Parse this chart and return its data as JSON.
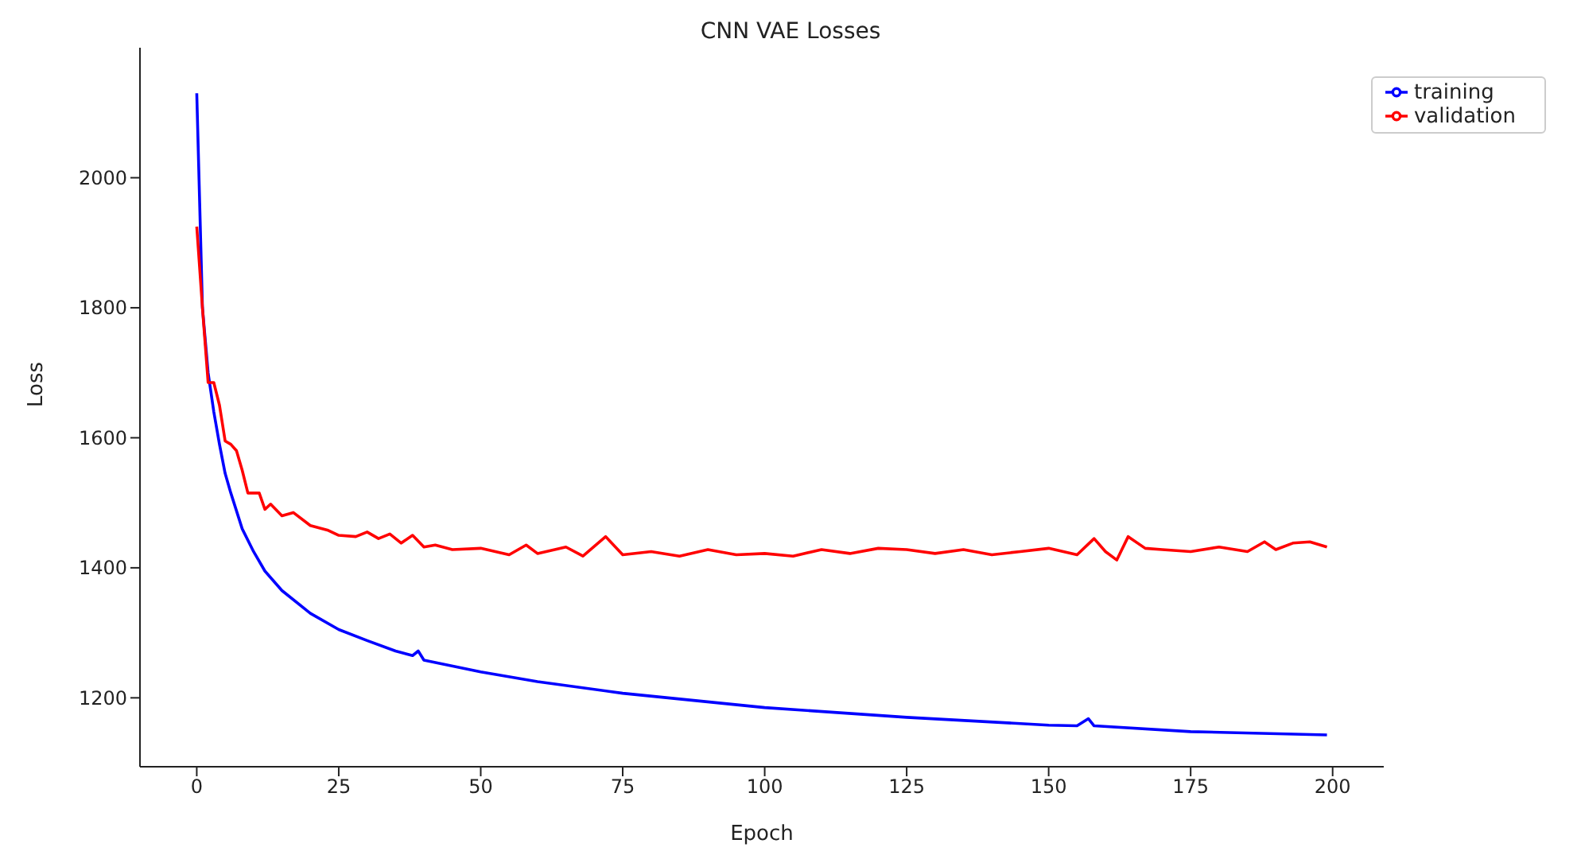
{
  "chart_data": {
    "type": "line",
    "title": "CNN VAE Losses",
    "xlabel": "Epoch",
    "ylabel": "Loss",
    "xlim": [
      -10,
      209
    ],
    "ylim": [
      1094,
      2200
    ],
    "xticks": [
      0,
      25,
      50,
      75,
      100,
      125,
      150,
      175,
      200
    ],
    "yticks": [
      1200,
      1400,
      1600,
      1800,
      2000
    ],
    "grid": false,
    "legend": "top right",
    "marker": "none",
    "line_style": "solid",
    "series": [
      {
        "name": "training",
        "color": "#0000ff",
        "x": [
          0,
          1,
          2,
          3,
          4,
          5,
          6,
          8,
          10,
          12,
          15,
          20,
          25,
          30,
          35,
          38,
          39,
          40,
          50,
          60,
          75,
          100,
          125,
          150,
          155,
          157,
          158,
          175,
          199
        ],
        "values": [
          2130,
          1800,
          1700,
          1640,
          1590,
          1545,
          1515,
          1460,
          1425,
          1395,
          1365,
          1330,
          1305,
          1288,
          1272,
          1265,
          1272,
          1258,
          1240,
          1225,
          1207,
          1185,
          1170,
          1158,
          1157,
          1168,
          1157,
          1148,
          1143
        ]
      },
      {
        "name": "validation",
        "color": "#ff0000",
        "x": [
          0,
          1,
          2,
          3,
          4,
          5,
          6,
          7,
          8,
          9,
          11,
          12,
          13,
          15,
          17,
          20,
          23,
          25,
          28,
          30,
          32,
          34,
          36,
          38,
          40,
          42,
          45,
          50,
          55,
          58,
          60,
          65,
          68,
          72,
          75,
          80,
          85,
          90,
          95,
          100,
          105,
          110,
          115,
          120,
          125,
          130,
          135,
          140,
          145,
          150,
          155,
          158,
          160,
          162,
          164,
          167,
          170,
          175,
          180,
          185,
          188,
          190,
          193,
          196,
          199
        ],
        "values": [
          1925,
          1800,
          1685,
          1685,
          1650,
          1595,
          1590,
          1580,
          1550,
          1515,
          1515,
          1490,
          1498,
          1480,
          1485,
          1465,
          1458,
          1450,
          1448,
          1455,
          1445,
          1452,
          1438,
          1450,
          1432,
          1435,
          1428,
          1430,
          1420,
          1435,
          1422,
          1432,
          1418,
          1448,
          1420,
          1425,
          1418,
          1428,
          1420,
          1422,
          1418,
          1428,
          1422,
          1430,
          1428,
          1422,
          1428,
          1420,
          1425,
          1430,
          1420,
          1445,
          1425,
          1412,
          1448,
          1430,
          1428,
          1425,
          1432,
          1425,
          1440,
          1428,
          1438,
          1440,
          1432
        ]
      }
    ]
  }
}
